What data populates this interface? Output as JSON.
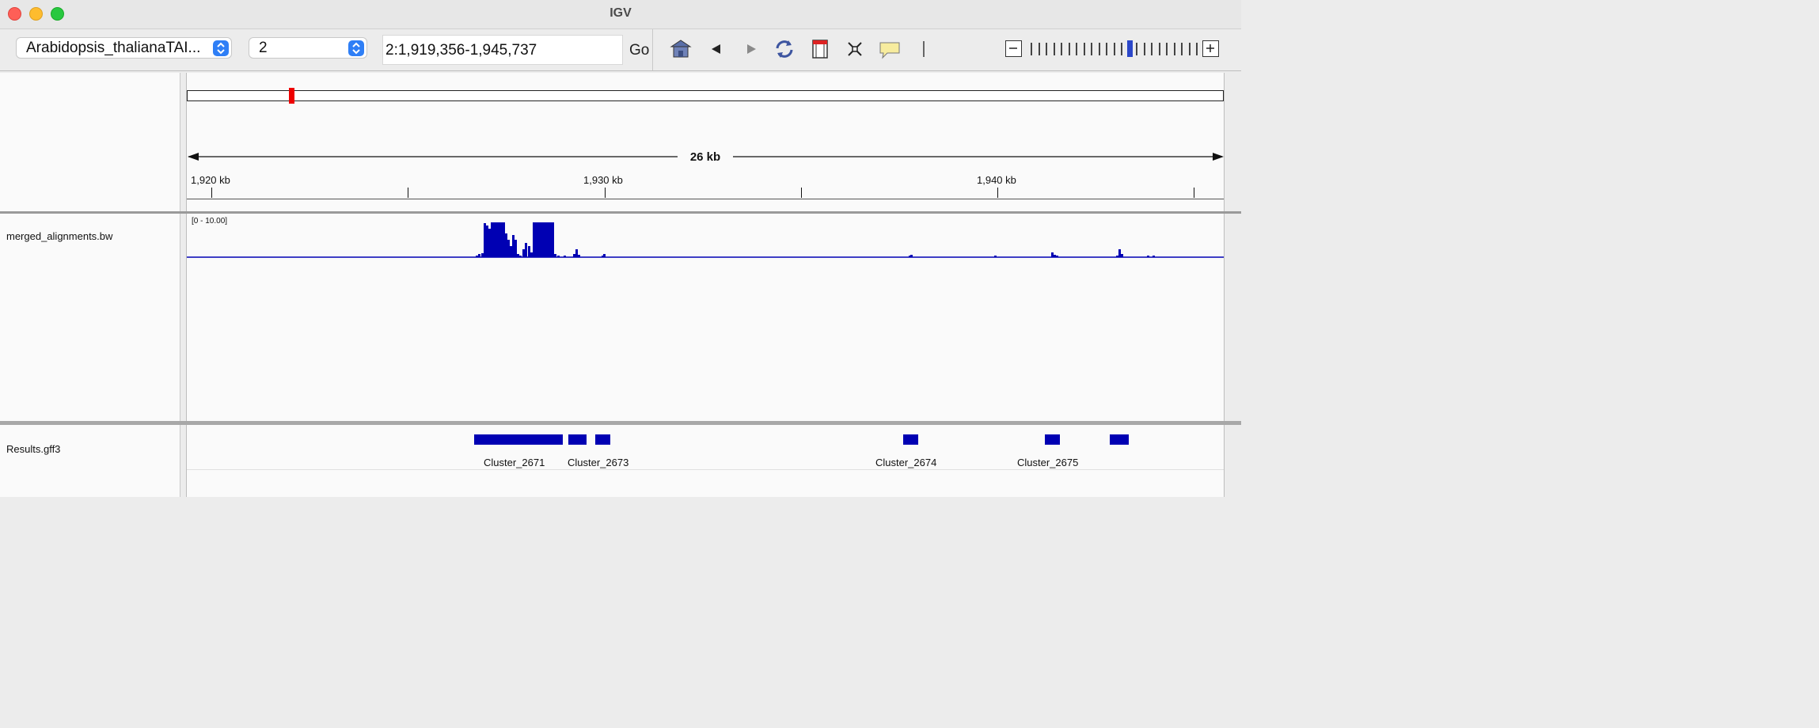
{
  "window": {
    "title": "IGV"
  },
  "toolbar": {
    "genome_select": "Arabidopsis_thalianaTAI...",
    "chromosome_select": "2",
    "locus": "2:1,919,356-1,945,737",
    "go_label": "Go",
    "icons": [
      "home-icon",
      "back-arrow-icon",
      "forward-arrow-icon",
      "refresh-icon",
      "region-of-interest-icon",
      "fit-to-window-icon",
      "popup-info-icon",
      "ruler-line-icon"
    ],
    "zoom_level": 0.6
  },
  "ruler": {
    "span_label": "26 kb",
    "tick_labels": [
      "1,920 kb",
      "1,930 kb",
      "1,940 kb"
    ],
    "ideogram_marker_fraction": 0.0985
  },
  "tracks": [
    {
      "name": "merged_alignments.bw",
      "range": "[0 - 10.00]",
      "color": "#0000b3"
    },
    {
      "name": "Results.gff3",
      "color": "#0000b3"
    }
  ],
  "features": [
    {
      "label": "Cluster_2671"
    },
    {
      "label": "Cluster_2673"
    },
    {
      "label": "Cluster_2674"
    },
    {
      "label": "Cluster_2675"
    }
  ]
}
